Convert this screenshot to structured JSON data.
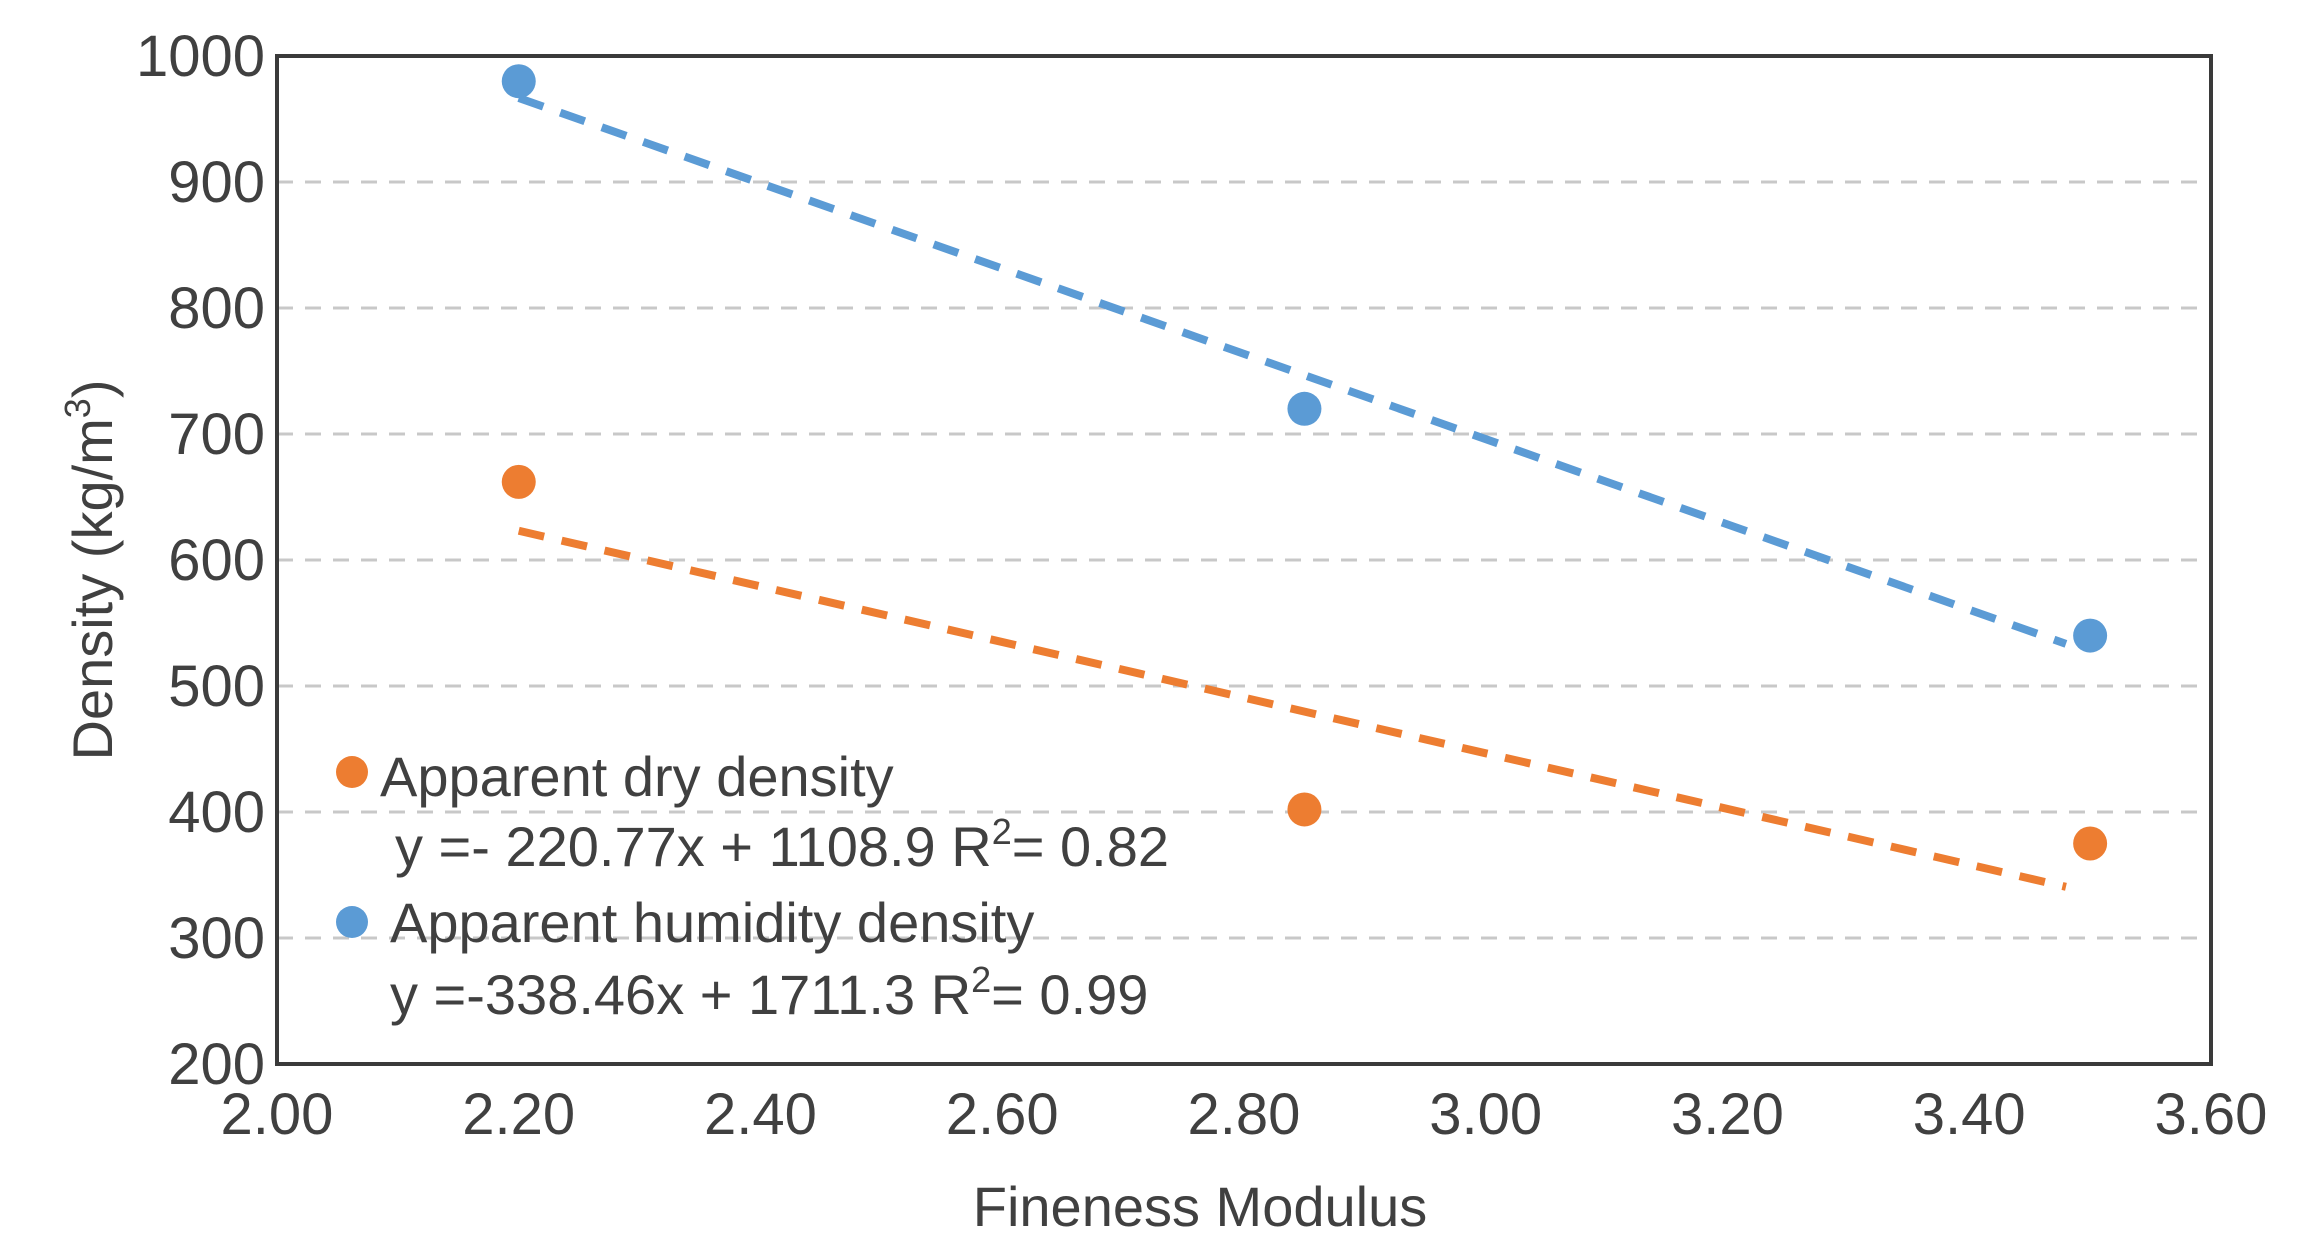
{
  "chart_data": {
    "type": "scatter",
    "title": "",
    "xlabel": "Fineness Modulus",
    "ylabel_main": "Density (kg/m",
    "ylabel_sup": "3",
    "ylabel_close": ")",
    "xlim": [
      2.0,
      3.6
    ],
    "ylim": [
      200,
      1000
    ],
    "xticks": [
      2.0,
      2.2,
      2.4,
      2.6,
      2.8,
      3.0,
      3.2,
      3.4,
      3.6
    ],
    "xtick_labels": [
      "2.00",
      "2.20",
      "2.40",
      "2.60",
      "2.80",
      "3.00",
      "3.20",
      "3.40",
      "3.60"
    ],
    "yticks": [
      200,
      300,
      400,
      500,
      600,
      700,
      800,
      900,
      1000
    ],
    "ytick_labels": [
      "200",
      "300",
      "400",
      "500",
      "600",
      "700",
      "800",
      "900",
      "1000"
    ],
    "grid": "horizontal dashed",
    "legend_placement": "lower-left",
    "series": [
      {
        "name": "Apparent dry density",
        "color": "#ED7D31",
        "x": [
          2.2,
          2.85,
          3.5
        ],
        "y": [
          662,
          402,
          375
        ],
        "trendline": {
          "slope": -220.77,
          "intercept": 1108.9,
          "x_range": [
            2.2,
            3.48
          ]
        },
        "equation": "y =- 220.77x + 1108.9 R",
        "r2": "= 0.82"
      },
      {
        "name": "Apparent humidity density",
        "color": "#5B9BD5",
        "x": [
          2.2,
          2.85,
          3.5
        ],
        "y": [
          980,
          720,
          540
        ],
        "trendline": {
          "slope": -338.46,
          "intercept": 1711.3,
          "x_range": [
            2.2,
            3.48
          ]
        },
        "equation": "y =-338.46x + 1711.3 R",
        "r2": "= 0.99"
      }
    ]
  }
}
